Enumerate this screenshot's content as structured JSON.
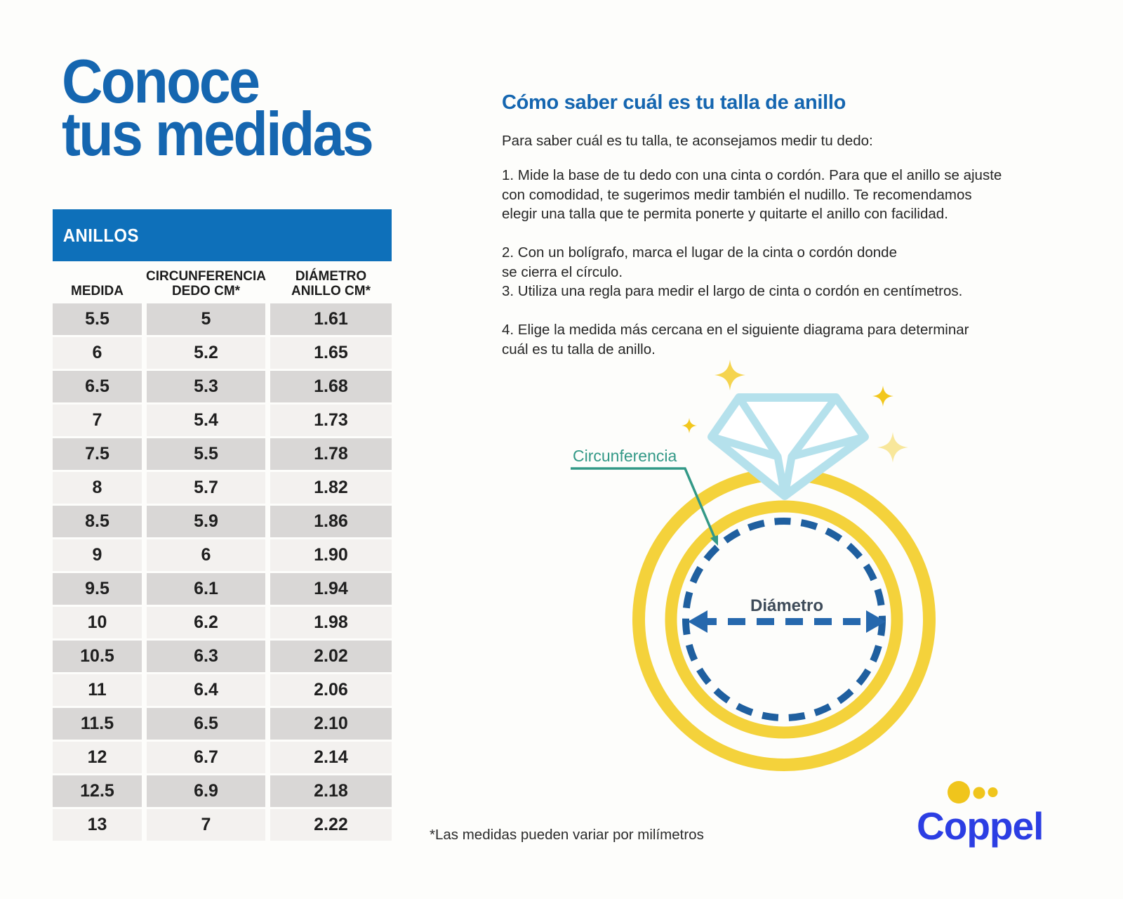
{
  "page": {
    "title_line1": "Conoce",
    "title_line2": "tus medidas",
    "footnote": "*Las medidas pueden variar por milímetros"
  },
  "table": {
    "header": "ANILLOS",
    "columns": [
      "MEDIDA",
      "CIRCUNFERENCIA\nDEDO CM*",
      "DIÁMETRO\nANILLO CM*"
    ],
    "rows": [
      [
        "5.5",
        "5",
        "1.61"
      ],
      [
        "6",
        "5.2",
        "1.65"
      ],
      [
        "6.5",
        "5.3",
        "1.68"
      ],
      [
        "7",
        "5.4",
        "1.73"
      ],
      [
        "7.5",
        "5.5",
        "1.78"
      ],
      [
        "8",
        "5.7",
        "1.82"
      ],
      [
        "8.5",
        "5.9",
        "1.86"
      ],
      [
        "9",
        "6",
        "1.90"
      ],
      [
        "9.5",
        "6.1",
        "1.94"
      ],
      [
        "10",
        "6.2",
        "1.98"
      ],
      [
        "10.5",
        "6.3",
        "2.02"
      ],
      [
        "11",
        "6.4",
        "2.06"
      ],
      [
        "11.5",
        "6.5",
        "2.10"
      ],
      [
        "12",
        "6.7",
        "2.14"
      ],
      [
        "12.5",
        "6.9",
        "2.18"
      ],
      [
        "13",
        "7",
        "2.22"
      ]
    ]
  },
  "guide": {
    "heading": "Cómo saber cuál es tu talla de anillo",
    "intro": "Para saber cuál es tu talla, te aconsejamos medir tu dedo:",
    "steps": [
      "1. Mide la base de tu dedo con una cinta o cordón. Para que el anillo se ajuste\ncon comodidad, te sugerimos medir también el nudillo. Te recomendamos\nelegir una talla que te permita ponerte y quitarte el anillo con facilidad.",
      "2. Con un bolígrafo, marca el lugar de la cinta o cordón donde\nse cierra el círculo.",
      "3. Utiliza una regla para medir el largo de cinta o cordón en centímetros.",
      "4. Elige la medida más cercana en el siguiente diagrama para determinar\ncuál es tu talla de anillo."
    ]
  },
  "diagram": {
    "circumference_label": "Circunferencia",
    "diameter_label": "Diámetro"
  },
  "brand": {
    "logo_text": "Coppel"
  },
  "colors": {
    "title_blue": "#1566b0",
    "bar_blue": "#0e70ba",
    "row_dark": "#d9d7d6",
    "row_light": "#f3f1ef",
    "ring_yellow": "#f4d23b",
    "diamond_blue": "#b5e1ec",
    "dash_blue": "#1f5f9f",
    "arrow_blue": "#2668ad",
    "teal": "#339987",
    "spark_bright": "#f2c71d",
    "spark_mid": "#f5d44f",
    "spark_pale": "#f8e79b",
    "logo_blue": "#2c3ee3",
    "dot_yellow": "#f0c51c"
  }
}
